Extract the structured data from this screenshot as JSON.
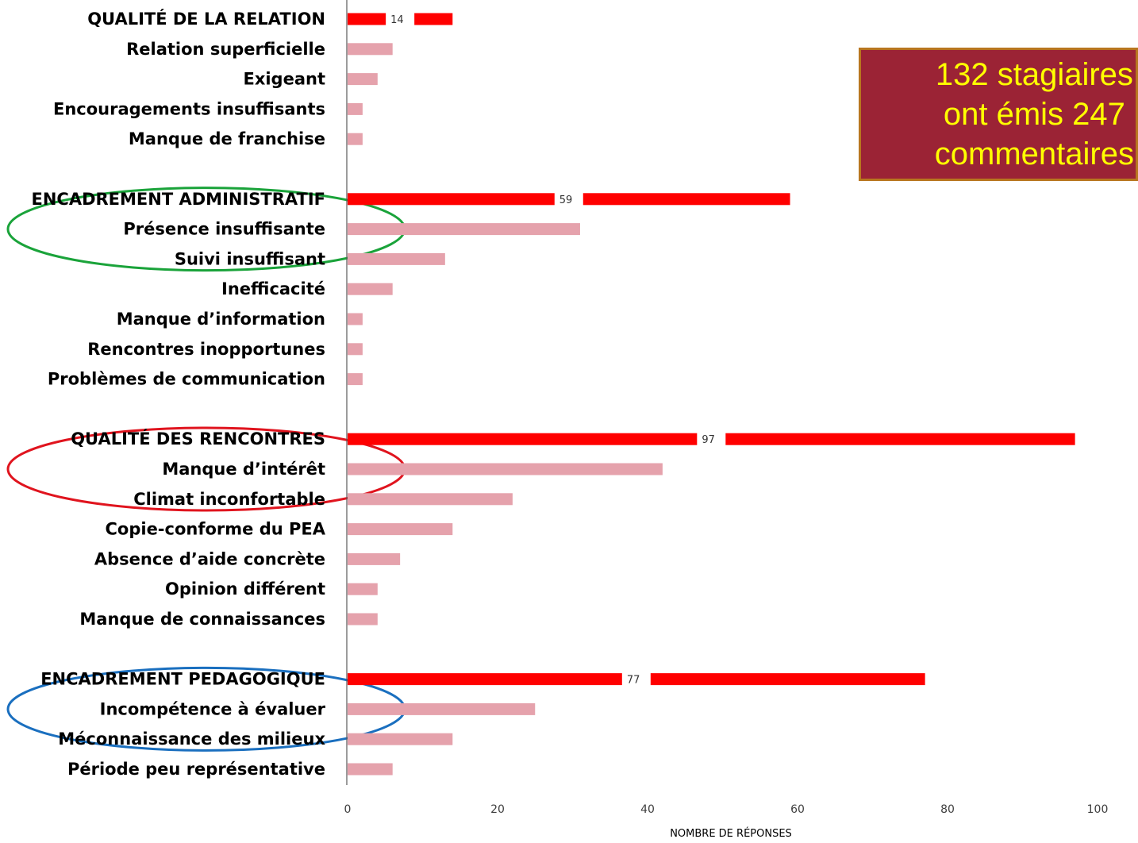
{
  "callout": {
    "text": "132 stagiaires\nont émis 247\ncommentaires"
  },
  "chart_data": {
    "type": "bar",
    "orientation": "horizontal",
    "xlabel": "NOMBRE DE RÉPONSES",
    "xlim": [
      0,
      100
    ],
    "xticks": [
      0,
      20,
      40,
      60,
      80,
      100
    ],
    "colors": {
      "group": "#ff0000",
      "item": "#e5a2ac",
      "axis": "#595959"
    },
    "groups": [
      {
        "name": "QUALITÉ DE LA RELATION",
        "value": 14,
        "items": [
          {
            "label": "Relation superficielle",
            "value": 6
          },
          {
            "label": "Exigeant",
            "value": 4
          },
          {
            "label": "Encouragements insuffisants",
            "value": 2
          },
          {
            "label": "Manque de franchise",
            "value": 2
          }
        ]
      },
      {
        "name": "ENCADREMENT ADMINISTRATIF",
        "value": 59,
        "items": [
          {
            "label": "Présence insuffisante",
            "value": 31
          },
          {
            "label": "Suivi insuffisant",
            "value": 13
          },
          {
            "label": "Inefficacité",
            "value": 6
          },
          {
            "label": "Manque d’information",
            "value": 2
          },
          {
            "label": "Rencontres inopportunes",
            "value": 2
          },
          {
            "label": "Problèmes de communication",
            "value": 2
          }
        ]
      },
      {
        "name": "QUALITÉ DES RENCONTRES",
        "value": 97,
        "items": [
          {
            "label": "Manque d’intérêt",
            "value": 42
          },
          {
            "label": "Climat inconfortable",
            "value": 22
          },
          {
            "label": "Copie-conforme du PEA",
            "value": 14
          },
          {
            "label": "Absence d’aide concrète",
            "value": 7
          },
          {
            "label": "Opinion différent",
            "value": 4
          },
          {
            "label": "Manque de connaissances",
            "value": 4
          }
        ]
      },
      {
        "name": "ENCADREMENT PEDAGOGIQUE",
        "value": 77,
        "items": [
          {
            "label": "Incompétence à évaluer",
            "value": 25
          },
          {
            "label": "Méconnaissance des milieux",
            "value": 14
          },
          {
            "label": "Période peu représentative",
            "value": 6
          }
        ]
      }
    ],
    "highlights": [
      {
        "group": "ENCADREMENT ADMINISTRATIF",
        "color": "#1aa33a"
      },
      {
        "group": "QUALITÉ DES RENCONTRES",
        "color": "#e0141e"
      },
      {
        "group": "ENCADREMENT PEDAGOGIQUE",
        "color": "#1a6fbf"
      }
    ]
  }
}
